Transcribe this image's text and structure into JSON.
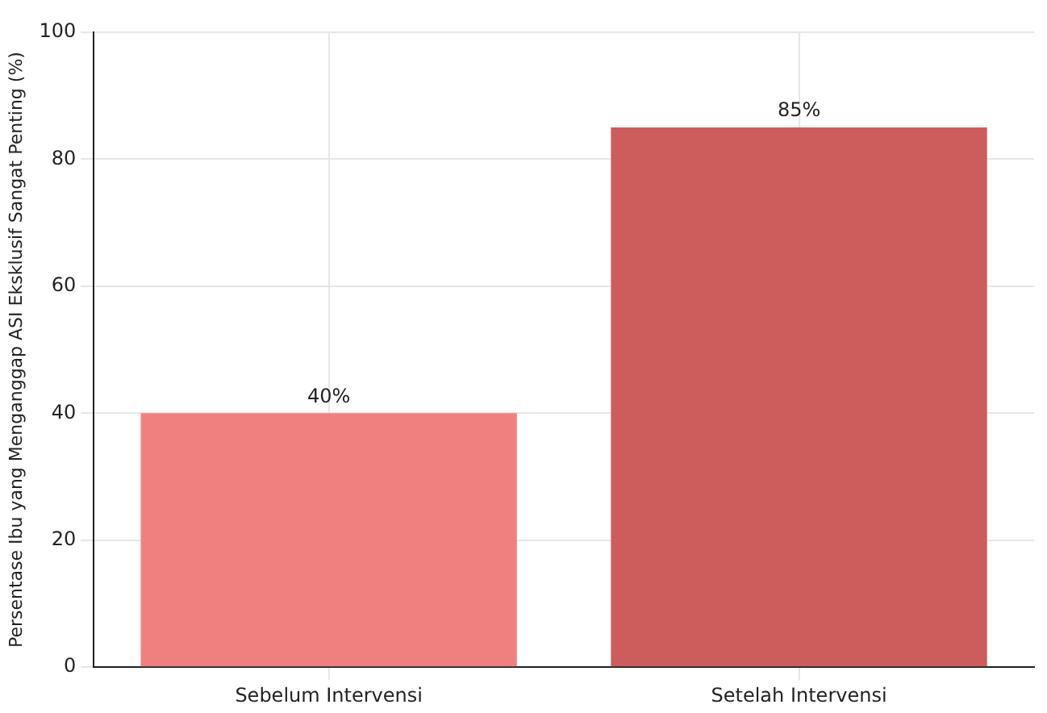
{
  "chart_data": {
    "type": "bar",
    "ylabel": "Persentase Ibu yang Menganggap ASI Eksklusif Sangat Penting (%)",
    "categories": [
      "Sebelum Intervensi",
      "Setelah Intervensi"
    ],
    "values": [
      40,
      85
    ],
    "colors": [
      "#f08080",
      "#cd5c5c"
    ],
    "value_labels": [
      "40%",
      "85%"
    ],
    "ylim": [
      0,
      100
    ],
    "yticks": [
      0,
      20,
      40,
      60,
      80,
      100
    ],
    "grid": true,
    "legend": false
  }
}
